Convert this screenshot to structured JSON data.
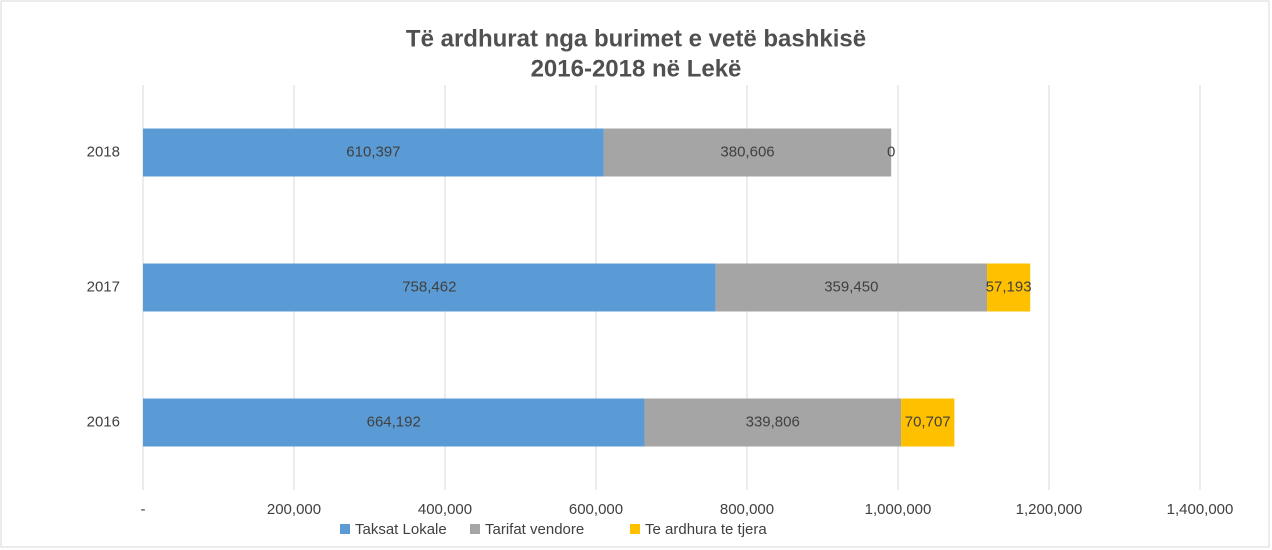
{
  "chart_data": {
    "type": "stacked-barh",
    "title": "Të ardhurat nga burimet e vetë bashkisë",
    "subtitle": "2016-2018 në Lekë",
    "categories": [
      "2018",
      "2017",
      "2016"
    ],
    "series": [
      {
        "name": "Taksat Lokale",
        "color": "#5b9bd5",
        "values": [
          610397,
          758462,
          664192
        ],
        "value_labels": [
          "610,397",
          "758,462",
          "664,192"
        ]
      },
      {
        "name": "Tarifat vendore",
        "color": "#a5a5a5",
        "values": [
          380606,
          359450,
          339806
        ],
        "value_labels": [
          "380,606",
          "359,450",
          "339,806"
        ]
      },
      {
        "name": "Te ardhura te tjera",
        "color": "#ffc000",
        "values": [
          0,
          57193,
          70707
        ],
        "value_labels": [
          "0",
          "57,193",
          "70,707"
        ]
      }
    ],
    "xlim": [
      0,
      1400000
    ],
    "xticks": [
      {
        "value": 0,
        "label": "-"
      },
      {
        "value": 200000,
        "label": "200,000"
      },
      {
        "value": 400000,
        "label": "400,000"
      },
      {
        "value": 600000,
        "label": "600,000"
      },
      {
        "value": 800000,
        "label": "800,000"
      },
      {
        "value": 1000000,
        "label": "1,000,000"
      },
      {
        "value": 1200000,
        "label": "1,200,000"
      },
      {
        "value": 1400000,
        "label": "1,400,000"
      }
    ],
    "grid": true,
    "legend": "bottom"
  }
}
